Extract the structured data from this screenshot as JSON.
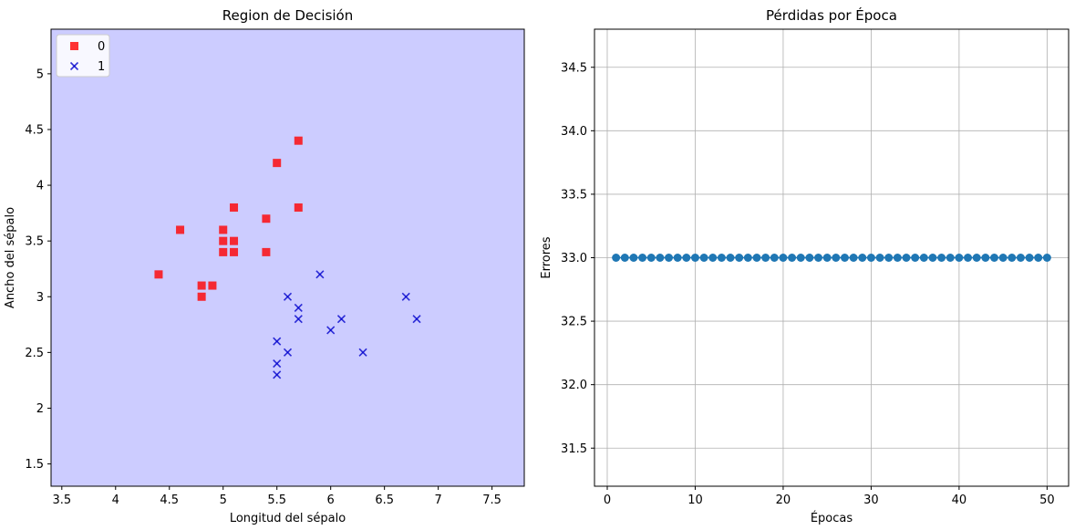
{
  "chart_data": [
    {
      "type": "scatter",
      "title": "Region de Decisión",
      "xlabel": "Longitud del sépalo",
      "ylabel": "Ancho del sépalo",
      "xlim": [
        3.4,
        7.8
      ],
      "ylim": [
        1.3,
        5.4
      ],
      "xticks": [
        3.5,
        4.0,
        4.5,
        5.0,
        5.5,
        6.0,
        6.5,
        7.0,
        7.5
      ],
      "yticks": [
        1.5,
        2.0,
        2.5,
        3.0,
        3.5,
        4.0,
        4.5,
        5.0
      ],
      "background_color": "#ccccff",
      "legend_position": "top-left",
      "grid": false,
      "series": [
        {
          "name": "0",
          "marker": "square",
          "color": "#ff0000",
          "points": [
            [
              5.7,
              4.4
            ],
            [
              5.5,
              4.2
            ],
            [
              5.1,
              3.8
            ],
            [
              5.7,
              3.8
            ],
            [
              5.4,
              3.7
            ],
            [
              4.6,
              3.6
            ],
            [
              5.0,
              3.6
            ],
            [
              5.0,
              3.5
            ],
            [
              5.1,
              3.5
            ],
            [
              5.0,
              3.4
            ],
            [
              5.1,
              3.4
            ],
            [
              5.4,
              3.4
            ],
            [
              4.4,
              3.2
            ],
            [
              4.8,
              3.1
            ],
            [
              4.9,
              3.1
            ],
            [
              4.8,
              3.0
            ]
          ]
        },
        {
          "name": "1",
          "marker": "x",
          "color": "#0000cc",
          "points": [
            [
              5.9,
              3.2
            ],
            [
              5.6,
              3.0
            ],
            [
              6.7,
              3.0
            ],
            [
              5.7,
              2.9
            ],
            [
              5.7,
              2.8
            ],
            [
              6.1,
              2.8
            ],
            [
              6.8,
              2.8
            ],
            [
              6.0,
              2.7
            ],
            [
              5.5,
              2.6
            ],
            [
              5.6,
              2.5
            ],
            [
              6.3,
              2.5
            ],
            [
              5.5,
              2.4
            ],
            [
              5.5,
              2.3
            ]
          ]
        }
      ]
    },
    {
      "type": "line",
      "title": "Pérdidas por Época",
      "xlabel": "Épocas",
      "ylabel": "Errores",
      "xlim": [
        -1.45,
        52.45
      ],
      "ylim": [
        31.2,
        34.8
      ],
      "xticks": [
        0,
        10,
        20,
        30,
        40,
        50
      ],
      "yticks": [
        31.5,
        32.0,
        32.5,
        33.0,
        33.5,
        34.0,
        34.5
      ],
      "grid": true,
      "marker": "circle",
      "color": "#1f77b4",
      "series": [
        {
          "x": [
            1,
            2,
            3,
            4,
            5,
            6,
            7,
            8,
            9,
            10,
            11,
            12,
            13,
            14,
            15,
            16,
            17,
            18,
            19,
            20,
            21,
            22,
            23,
            24,
            25,
            26,
            27,
            28,
            29,
            30,
            31,
            32,
            33,
            34,
            35,
            36,
            37,
            38,
            39,
            40,
            41,
            42,
            43,
            44,
            45,
            46,
            47,
            48,
            49,
            50
          ],
          "y": [
            33,
            33,
            33,
            33,
            33,
            33,
            33,
            33,
            33,
            33,
            33,
            33,
            33,
            33,
            33,
            33,
            33,
            33,
            33,
            33,
            33,
            33,
            33,
            33,
            33,
            33,
            33,
            33,
            33,
            33,
            33,
            33,
            33,
            33,
            33,
            33,
            33,
            33,
            33,
            33,
            33,
            33,
            33,
            33,
            33,
            33,
            33,
            33,
            33,
            33
          ]
        }
      ]
    }
  ]
}
